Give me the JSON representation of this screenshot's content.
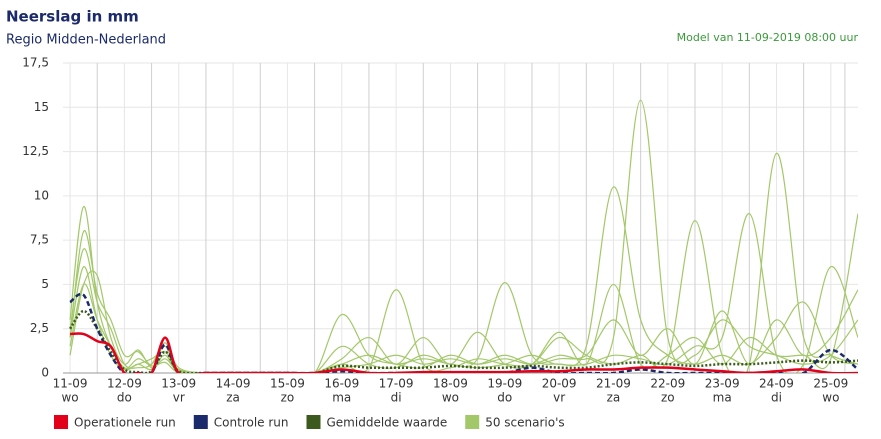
{
  "chart_data": {
    "type": "line",
    "title": "Neerslag in mm",
    "subtitle": "Regio Midden-Nederland",
    "annotation": "Model van 11-09-2019 08:00 uur",
    "x": [
      0,
      0.25,
      0.5,
      0.75,
      1,
      1.25,
      1.5,
      1.75,
      2,
      2.5,
      3,
      3.5,
      4,
      4.5,
      5,
      5.5,
      6,
      6.5,
      7,
      7.5,
      8,
      8.5,
      9,
      9.5,
      10,
      10.5,
      11,
      11.5,
      12,
      12.5,
      13,
      13.5,
      14,
      14.5
    ],
    "xlim": [
      -0.13,
      14.5
    ],
    "xticks": [
      {
        "value": 0,
        "label": "11-09"
      },
      {
        "value": 1,
        "label": "12-09"
      },
      {
        "value": 2,
        "label": "13-09"
      },
      {
        "value": 3,
        "label": "14-09"
      },
      {
        "value": 4,
        "label": "15-09"
      },
      {
        "value": 5,
        "label": "16-09"
      },
      {
        "value": 6,
        "label": "17-09"
      },
      {
        "value": 7,
        "label": "18-09"
      },
      {
        "value": 8,
        "label": "19-09"
      },
      {
        "value": 9,
        "label": "20-09"
      },
      {
        "value": 10,
        "label": "21-09"
      },
      {
        "value": 11,
        "label": "22-09"
      },
      {
        "value": 12,
        "label": "23-09"
      },
      {
        "value": 13,
        "label": "24-09"
      },
      {
        "value": 14,
        "label": "25-09"
      }
    ],
    "xtick_days": [
      "wo",
      "do",
      "vr",
      "za",
      "zo",
      "ma",
      "di",
      "wo",
      "do",
      "vr",
      "za",
      "zo",
      "ma",
      "di",
      "wo"
    ],
    "ylim": [
      0,
      17.5
    ],
    "yticks": [
      0,
      {
        "value": 2.5,
        "label": "2,5"
      },
      5,
      {
        "value": 7.5,
        "label": "7,5"
      },
      10,
      {
        "value": 12.5,
        "label": "12,5"
      },
      15,
      {
        "value": 17.5,
        "label": "17,5"
      }
    ],
    "grid": true,
    "series": [
      {
        "name": "Operationele run",
        "color": "#e2001a",
        "style": "solid",
        "values": [
          2.2,
          2.2,
          1.8,
          1.5,
          0,
          0,
          0,
          2,
          0,
          0,
          0,
          0,
          0,
          0,
          0.2,
          0,
          0,
          0.05,
          0.05,
          0.05,
          0.05,
          0.1,
          0.1,
          0.2,
          0.2,
          0.3,
          0.3,
          0.2,
          0.1,
          0,
          0.1,
          0.2,
          0,
          0
        ]
      },
      {
        "name": "Controle run",
        "color": "#1b2a6b",
        "style": "dashed",
        "values": [
          4,
          4.4,
          2.5,
          1,
          0,
          0,
          0,
          1.6,
          0,
          0,
          0,
          0,
          0,
          0,
          0.1,
          0,
          0,
          0,
          0,
          0,
          0,
          0.3,
          0,
          0,
          0,
          0.2,
          0,
          0,
          0,
          0,
          0,
          0,
          1.3,
          0.2
        ]
      },
      {
        "name": "Gemiddelde waarde",
        "color": "#3d5a1e",
        "style": "dotted",
        "values": [
          2.5,
          3.5,
          2.5,
          1.2,
          0.2,
          0.05,
          0.1,
          1.2,
          0.1,
          0,
          0,
          0,
          0,
          0,
          0.4,
          0.3,
          0.3,
          0.3,
          0.4,
          0.3,
          0.3,
          0.4,
          0.3,
          0.3,
          0.5,
          0.6,
          0.5,
          0.4,
          0.5,
          0.5,
          0.6,
          0.7,
          0.6,
          0.7
        ]
      },
      {
        "name": "50 scenario's",
        "color": "#a3c86a",
        "style": "solid",
        "members": [
          [
            3,
            9.4,
            4,
            1.5,
            0.3,
            0.5,
            0.8,
            1.2,
            0.2,
            0,
            0,
            0,
            0,
            0,
            0.5,
            1,
            0.5,
            0.8,
            0.5,
            0.3,
            0.5,
            1,
            0.5,
            1.5,
            10.5,
            3,
            1,
            0.5,
            1,
            0.5,
            2,
            4,
            1,
            0.5
          ],
          [
            2,
            6,
            3,
            1,
            0.2,
            0.8,
            0.5,
            1.5,
            0.1,
            0,
            0,
            0,
            0,
            0,
            3.3,
            1,
            0.5,
            0.3,
            1,
            0.5,
            0.8,
            0.5,
            1,
            0.8,
            2,
            15.4,
            2,
            1,
            3,
            1.5,
            1,
            0.5,
            1,
            3
          ],
          [
            1,
            5,
            5.5,
            2,
            0.5,
            1.3,
            0.3,
            0.8,
            0.1,
            0,
            0,
            0,
            0,
            0,
            0.5,
            0.3,
            4.7,
            0.5,
            0.3,
            0.8,
            0.5,
            0.5,
            2,
            1,
            0.5,
            1,
            0.8,
            8.6,
            1,
            0.5,
            12.4,
            2,
            1,
            0.5
          ],
          [
            2.5,
            7,
            4,
            2.5,
            0.5,
            0.3,
            0.5,
            1.7,
            0.3,
            0,
            0,
            0,
            0,
            0,
            1.5,
            0.5,
            0.3,
            1,
            0.5,
            0.8,
            5.1,
            1,
            0.5,
            0.5,
            1,
            0.8,
            0.5,
            1.5,
            2,
            9,
            1,
            0.5,
            6,
            2
          ],
          [
            1.5,
            5,
            3,
            1.5,
            0.2,
            0.5,
            0.2,
            1,
            0,
            0,
            0,
            0,
            0,
            0,
            0.8,
            2,
            0.5,
            2,
            0.5,
            2.3,
            0.5,
            0.5,
            2.3,
            0.5,
            5,
            0.5,
            1,
            2,
            0.5,
            2,
            1,
            1,
            0.8,
            9
          ],
          [
            2,
            8,
            4.5,
            3,
            1,
            1.2,
            0.4,
            0.6,
            0,
            0,
            0,
            0,
            0,
            0,
            0.3,
            0.5,
            1,
            0.5,
            0.8,
            0.5,
            1,
            0.5,
            0.8,
            1,
            3,
            1,
            2.5,
            0.5,
            3.5,
            0.5,
            3,
            1,
            2,
            4.7
          ]
        ]
      }
    ]
  }
}
